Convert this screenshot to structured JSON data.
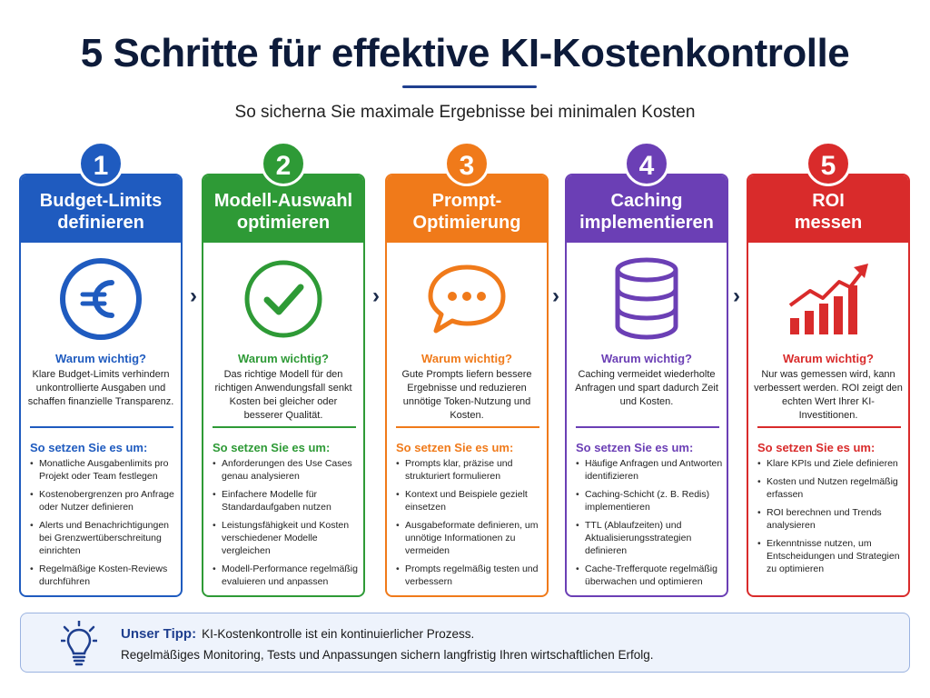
{
  "title": "5 Schritte für effektive KI-Kostenkontrolle",
  "subtitle": "So sicherna Sie maximale Ergebnisse bei minimalen Kosten",
  "steps": [
    {
      "number": "1",
      "color": "#1f5bbf",
      "heading_line1": "Budget-Limits",
      "heading_line2": "definieren",
      "icon": "euro-icon",
      "why_title": "Warum wichtig?",
      "why_text": "Klare Budget-Limits verhindern unkontrollierte Ausgaben und schaffen finanzielle Transparenz.",
      "how_title": "So setzen Sie es um:",
      "how_items": [
        "Monatliche Ausgabenlimits pro Projekt oder Team festlegen",
        "Kostenobergrenzen pro Anfrage oder Nutzer definieren",
        "Alerts und Benachrichtigungen bei Grenzwertüberschreitung einrichten",
        "Regelmäßige Kosten-Reviews durchführen"
      ]
    },
    {
      "number": "2",
      "color": "#2e9a36",
      "heading_line1": "Modell-Auswahl",
      "heading_line2": "optimieren",
      "icon": "check-circle-icon",
      "why_title": "Warum wichtig?",
      "why_text": "Das richtige Modell für den richtigen Anwendungsfall senkt Kosten bei gleicher oder besserer Qualität.",
      "how_title": "So setzen Sie es um:",
      "how_items": [
        "Anforderungen des Use Cases genau analysieren",
        "Einfachere Modelle für Standardaufgaben nutzen",
        "Leistungsfähigkeit und Kosten verschiedener Modelle vergleichen",
        "Modell-Performance regelmäßig evaluieren und anpassen"
      ]
    },
    {
      "number": "3",
      "color": "#f07a1a",
      "heading_line1": "Prompt-",
      "heading_line2": "Optimierung",
      "icon": "chat-bubble-icon",
      "why_title": "Warum wichtig?",
      "why_text": "Gute Prompts liefern bessere Ergebnisse und reduzieren unnötige Token-Nutzung und Kosten.",
      "how_title": "So setzen Sie es um:",
      "how_items": [
        "Prompts klar, präzise und strukturiert formulieren",
        "Kontext und Beispiele gezielt einsetzen",
        "Ausgabeformate definieren, um unnötige Informationen zu vermeiden",
        "Prompts regelmäßig testen und verbessern"
      ]
    },
    {
      "number": "4",
      "color": "#6b3fb5",
      "heading_line1": "Caching",
      "heading_line2": "implementieren",
      "icon": "database-icon",
      "why_title": "Warum wichtig?",
      "why_text": "Caching vermeidet wiederholte Anfragen und spart dadurch Zeit und Kosten.",
      "how_title": "So setzen Sie es um:",
      "how_items": [
        "Häufige Anfragen und Antworten identifizieren",
        "Caching-Schicht (z. B. Redis) implementieren",
        "TTL (Ablaufzeiten) und Aktualisierungsstrategien definieren",
        "Cache-Trefferquote regelmäßig überwachen und optimieren"
      ]
    },
    {
      "number": "5",
      "color": "#d92b2b",
      "heading_line1": "ROI",
      "heading_line2": "messen",
      "icon": "growth-chart-icon",
      "why_title": "Warum wichtig?",
      "why_text": "Nur was gemessen wird, kann verbessert werden. ROI zeigt den echten Wert Ihrer KI-Investitionen.",
      "how_title": "So setzen Sie es um:",
      "how_items": [
        "Klare KPIs und Ziele definieren",
        "Kosten und Nutzen regelmäßig erfassen",
        "ROI berechnen und Trends analysieren",
        "Erkenntnisse nutzen, um Entscheidungen und Strategien zu optimieren"
      ]
    }
  ],
  "tip": {
    "label": "Unser Tipp:",
    "line1": "KI-Kostenkontrolle ist ein kontinuierlicher Prozess.",
    "line2": "Regelmäßiges Monitoring, Tests und Anpassungen sichern langfristig Ihren wirtschaftlichen Erfolg.",
    "icon": "lightbulb-icon"
  }
}
